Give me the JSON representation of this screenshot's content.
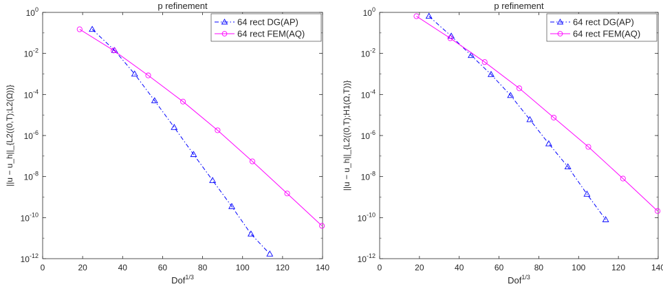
{
  "chart_data": [
    {
      "type": "line",
      "title": "p refinement",
      "xlabel": "Dof",
      "xlabel_sup": "1/3",
      "ylabel": "||u − u_h||_{L2((0,T);L2(Ω))}",
      "xlim": [
        0,
        140
      ],
      "ylim": [
        1e-12,
        1
      ],
      "yscale": "log",
      "xticks": [
        "0",
        "20",
        "40",
        "60",
        "80",
        "100",
        "120",
        "140"
      ],
      "yticks": [
        {
          "base": "10",
          "exp": "0",
          "value": 1
        },
        {
          "base": "10",
          "exp": "-2",
          "value": 0.01
        },
        {
          "base": "10",
          "exp": "-4",
          "value": 0.0001
        },
        {
          "base": "10",
          "exp": "-6",
          "value": 1e-06
        },
        {
          "base": "10",
          "exp": "-8",
          "value": 1e-08
        },
        {
          "base": "10",
          "exp": "-10",
          "value": 1e-10
        },
        {
          "base": "10",
          "exp": "-12",
          "value": 1e-12
        }
      ],
      "legend_position": "top-right",
      "grid": false,
      "series": [
        {
          "name": "64 rect DG(AP)",
          "color": "#0000ff",
          "line": "dashdot",
          "marker": "triangle",
          "x": [
            24.8,
            36,
            46,
            56,
            65.8,
            75.5,
            85,
            94.6,
            104.2,
            113.6
          ],
          "y": [
            0.15,
            0.014,
            0.001,
            5e-05,
            2.5e-06,
            1.2e-07,
            6.5e-09,
            3.5e-10,
            1.6e-11,
            1.7e-12
          ]
        },
        {
          "name": "64 rect FEM(AQ)",
          "color": "#ff00ff",
          "line": "solid",
          "marker": "circle",
          "x": [
            18.5,
            35.5,
            52.8,
            70.2,
            87.5,
            104.9,
            122.3,
            139.7
          ],
          "y": [
            0.15,
            0.014,
            0.00085,
            4.5e-05,
            1.8e-06,
            5.5e-08,
            1.5e-09,
            4e-11
          ]
        }
      ]
    },
    {
      "type": "line",
      "title": "p refinement",
      "xlabel": "Dof",
      "xlabel_sup": "1/3",
      "ylabel": "||u − u_h||_{L2((0,T);H1(Ω,T))}",
      "xlim": [
        0,
        140
      ],
      "ylim": [
        1e-12,
        1
      ],
      "yscale": "log",
      "xticks": [
        "0",
        "20",
        "40",
        "60",
        "80",
        "100",
        "120",
        "140"
      ],
      "yticks": [
        {
          "base": "10",
          "exp": "0",
          "value": 1
        },
        {
          "base": "10",
          "exp": "-2",
          "value": 0.01
        },
        {
          "base": "10",
          "exp": "-4",
          "value": 0.0001
        },
        {
          "base": "10",
          "exp": "-6",
          "value": 1e-06
        },
        {
          "base": "10",
          "exp": "-8",
          "value": 1e-08
        },
        {
          "base": "10",
          "exp": "-10",
          "value": 1e-10
        },
        {
          "base": "10",
          "exp": "-12",
          "value": 1e-12
        }
      ],
      "legend_position": "top-right",
      "grid": false,
      "series": [
        {
          "name": "64 rect DG(AP)",
          "color": "#0000ff",
          "line": "dashdot",
          "marker": "triangle",
          "x": [
            24.8,
            36,
            46,
            56,
            65.8,
            75.5,
            85,
            94.6,
            104.2,
            113.6
          ],
          "y": [
            0.65,
            0.07,
            0.008,
            0.00095,
            9e-05,
            6e-06,
            4e-07,
            3e-08,
            1.4e-09,
            8e-11
          ]
        },
        {
          "name": "64 rect FEM(AQ)",
          "color": "#ff00ff",
          "line": "solid",
          "marker": "circle",
          "x": [
            18.5,
            35.5,
            52.8,
            70.2,
            87.5,
            104.9,
            122.3,
            139.7
          ],
          "y": [
            0.65,
            0.055,
            0.0038,
            0.0002,
            7.5e-06,
            2.8e-07,
            8e-09,
            2.1e-10
          ]
        }
      ]
    }
  ]
}
